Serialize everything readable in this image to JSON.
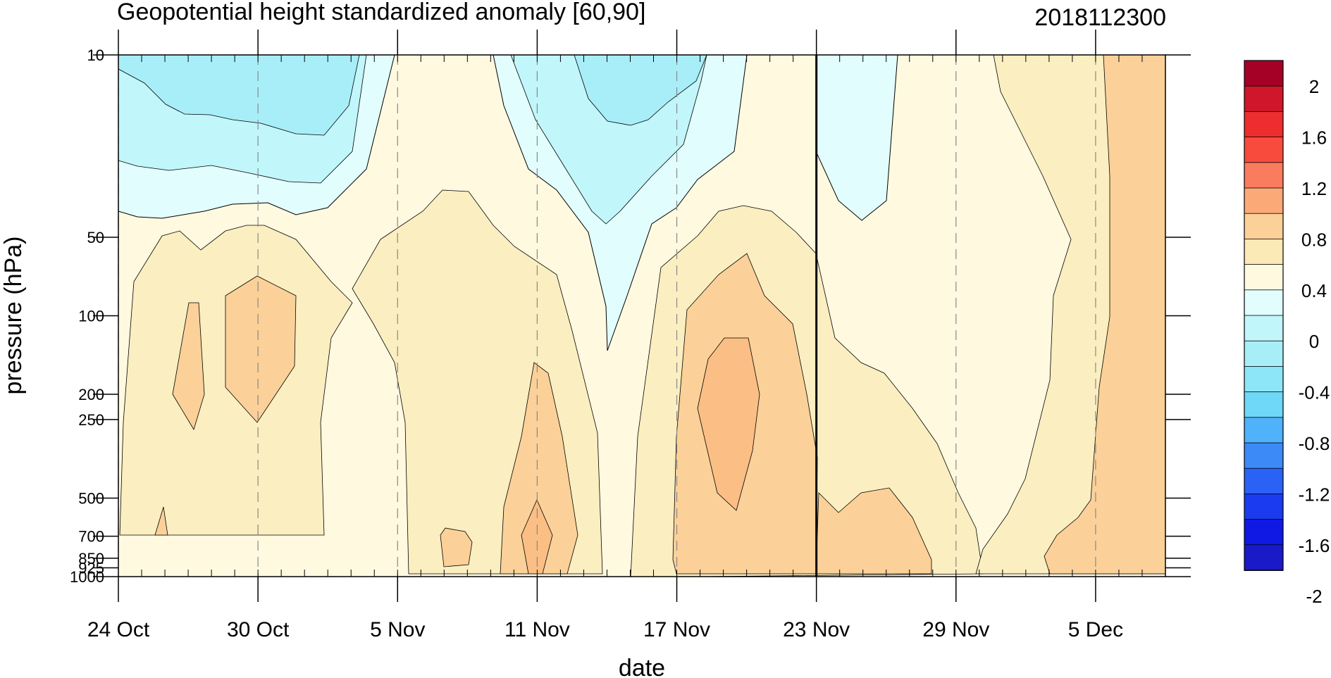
{
  "chart_data": {
    "type": "contour",
    "title": "Geopotential height standardized anomaly [60,90]",
    "right_title": "2018112300",
    "xlabel": "date",
    "ylabel": "pressure (hPa)",
    "x_range": [
      "2018-10-24",
      "2018-12-08"
    ],
    "x_ticks": [
      {
        "date": "2018-10-24",
        "label": "24 Oct"
      },
      {
        "date": "2018-10-30",
        "label": "30 Oct"
      },
      {
        "date": "2018-11-05",
        "label": "5 Nov"
      },
      {
        "date": "2018-11-11",
        "label": "11 Nov"
      },
      {
        "date": "2018-11-17",
        "label": "17 Nov"
      },
      {
        "date": "2018-11-23",
        "label": "23 Nov"
      },
      {
        "date": "2018-11-29",
        "label": "29 Nov"
      },
      {
        "date": "2018-12-05",
        "label": "5 Dec"
      }
    ],
    "y_scale": "log",
    "y_range": [
      1000,
      10
    ],
    "y_ticks": [
      {
        "value": 10,
        "label": "10"
      },
      {
        "value": 50,
        "label": "50"
      },
      {
        "value": 100,
        "label": "100"
      },
      {
        "value": 200,
        "label": "200"
      },
      {
        "value": 250,
        "label": "250"
      },
      {
        "value": 500,
        "label": "500"
      },
      {
        "value": 700,
        "label": "700"
      },
      {
        "value": 850,
        "label": "850"
      },
      {
        "value": 925,
        "label": "925"
      },
      {
        "value": 1000,
        "label": "1000"
      }
    ],
    "reference_line_date": "2018-11-23",
    "colorbar": {
      "levels": [
        -2,
        -1.8,
        -1.6,
        -1.4,
        -1.2,
        -1,
        -0.8,
        -0.6,
        -0.4,
        -0.2,
        0,
        0.2,
        0.4,
        0.6,
        0.8,
        1,
        1.2,
        1.4,
        1.6,
        1.8,
        2
      ],
      "labels": [
        "2",
        "1.6",
        "1.2",
        "0.8",
        "0.4",
        "0",
        "-0.4",
        "-0.8",
        "-1.2",
        "-1.6",
        "-2"
      ],
      "colors_top_to_bottom": [
        "#A50026",
        "#D0162B",
        "#EE2D2E",
        "#F84B3E",
        "#FA7C5E",
        "#FBAA77",
        "#FBD199",
        "#FBE9B6",
        "#FFF9E0",
        "#E2FDFD",
        "#C1F6FB",
        "#A8EEF8",
        "#8DE6F8",
        "#6FD7F8",
        "#4FB2FA",
        "#3B8AF8",
        "#2A62F5",
        "#1A3BF0",
        "#1018E4",
        "#1A1AC8"
      ]
    },
    "fill_colors": {
      "n04": "#A8EEF8",
      "n02": "#C1F6FB",
      "n00": "#E2FDFD",
      "p00": "#FFF9E0",
      "p02": "#FBEEC0",
      "p04": "#FBD199",
      "p06": "#FBBE85"
    }
  }
}
